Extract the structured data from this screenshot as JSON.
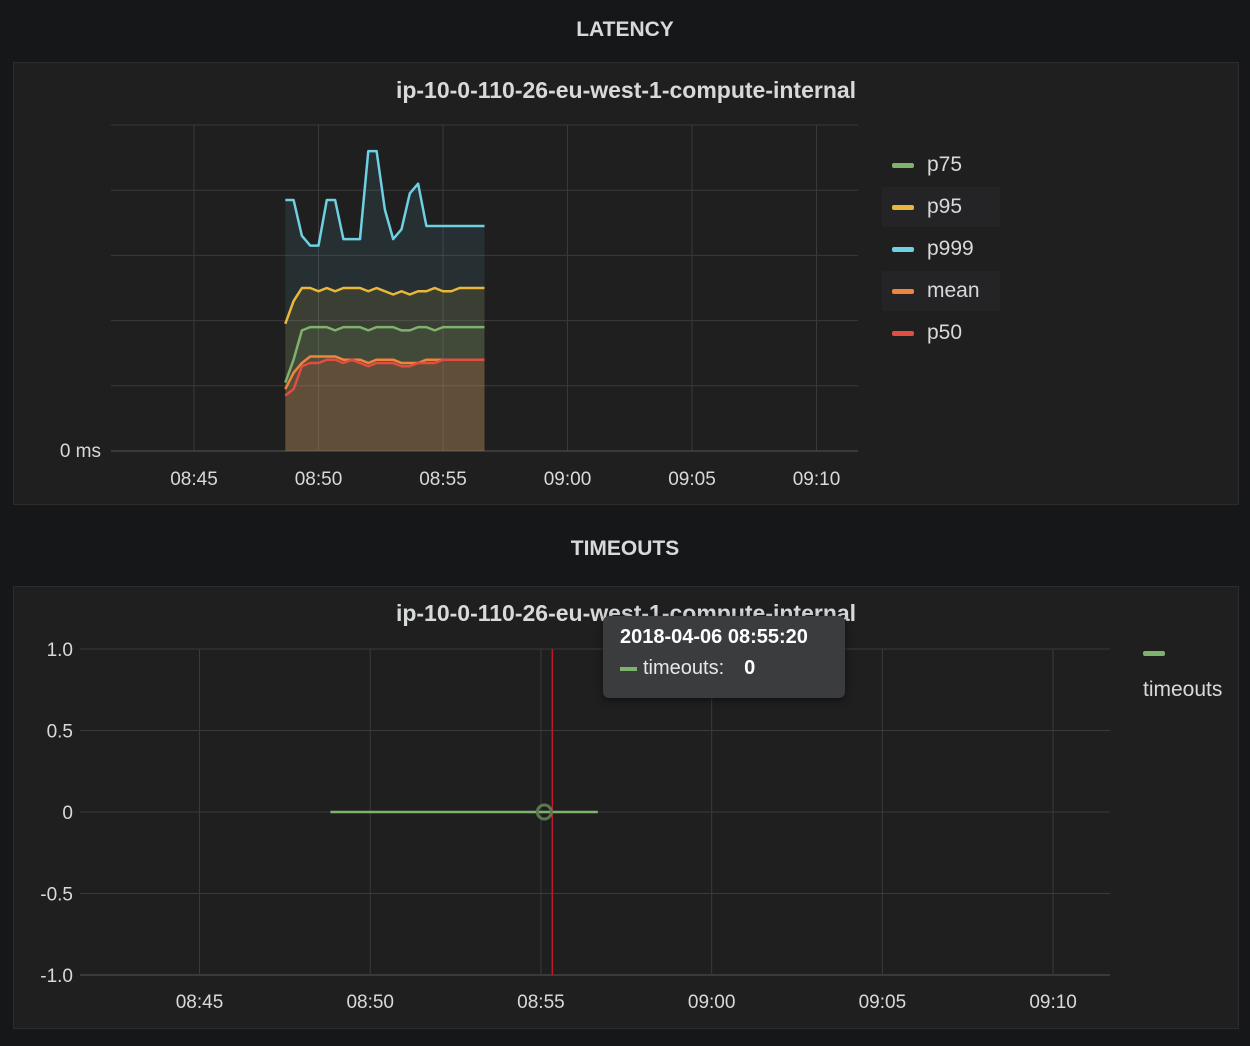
{
  "rows": [
    {
      "title": "LATENCY"
    },
    {
      "title": "TIMEOUTS"
    }
  ],
  "latency_panel": {
    "title": "ip-10-0-110-26-eu-west-1-compute-internal",
    "legend": [
      {
        "name": "p75",
        "color": "#7eb26d"
      },
      {
        "name": "p95",
        "color": "#eab839"
      },
      {
        "name": "p999",
        "color": "#6ed0e0"
      },
      {
        "name": "mean",
        "color": "#ef843c"
      },
      {
        "name": "p50",
        "color": "#e24d42"
      }
    ]
  },
  "timeouts_panel": {
    "title": "ip-10-0-110-26-eu-west-1-compute-internal",
    "legend": [
      {
        "name": "timeouts",
        "color": "#7eb26d"
      }
    ],
    "tooltip": {
      "time": "2018-04-06 08:55:20",
      "series": "timeouts:",
      "value": "0"
    }
  },
  "chart_data": [
    {
      "type": "area",
      "title": "ip-10-0-110-26-eu-west-1-compute-internal",
      "x_ticks": [
        "08:45",
        "08:50",
        "08:55",
        "09:00",
        "09:05",
        "09:10"
      ],
      "y_ticks": [
        "0 ms"
      ],
      "x_range": [
        "08:41:40",
        "09:11:40"
      ],
      "y_range": [
        0,
        100
      ],
      "grid": true,
      "legend_position": "right",
      "x": [
        "08:48:40",
        "08:49:00",
        "08:49:20",
        "08:49:40",
        "08:50:00",
        "08:50:20",
        "08:50:40",
        "08:51:00",
        "08:51:20",
        "08:51:40",
        "08:52:00",
        "08:52:20",
        "08:52:40",
        "08:53:00",
        "08:53:20",
        "08:53:40",
        "08:54:00",
        "08:54:20",
        "08:54:40",
        "08:55:00",
        "08:55:20",
        "08:55:40",
        "08:56:00",
        "08:56:20",
        "08:56:40"
      ],
      "series": [
        {
          "name": "p75",
          "color": "#7eb26d",
          "values": [
            21,
            28,
            37,
            38,
            38,
            38,
            37,
            38,
            38,
            38,
            37,
            38,
            38,
            38,
            37,
            37,
            38,
            38,
            37,
            38,
            38,
            38,
            38,
            38,
            38
          ]
        },
        {
          "name": "p95",
          "color": "#eab839",
          "values": [
            39,
            46,
            50,
            50,
            49,
            50,
            49,
            50,
            50,
            50,
            49,
            50,
            49,
            48,
            49,
            48,
            49,
            49,
            50,
            49,
            49,
            50,
            50,
            50,
            50
          ]
        },
        {
          "name": "p999",
          "color": "#6ed0e0",
          "values": [
            77,
            77,
            66,
            63,
            63,
            77,
            77,
            65,
            65,
            65,
            92,
            92,
            74,
            65,
            68,
            79,
            82,
            69,
            69,
            69,
            69,
            69,
            69,
            69,
            69
          ]
        },
        {
          "name": "mean",
          "color": "#ef843c",
          "values": [
            19,
            24,
            27,
            29,
            29,
            29,
            29,
            28,
            28,
            28,
            27,
            28,
            28,
            28,
            27,
            27,
            27,
            28,
            28,
            28,
            28,
            28,
            28,
            28,
            28
          ]
        },
        {
          "name": "p50",
          "color": "#e24d42",
          "values": [
            17,
            19,
            26,
            27,
            27,
            28,
            28,
            27,
            28,
            27,
            26,
            27,
            27,
            27,
            26,
            26,
            27,
            27,
            27,
            28,
            28,
            28,
            28,
            28,
            28
          ]
        }
      ]
    },
    {
      "type": "line",
      "title": "ip-10-0-110-26-eu-west-1-compute-internal",
      "x_ticks": [
        "08:45",
        "08:50",
        "08:55",
        "09:00",
        "09:05",
        "09:10"
      ],
      "y_ticks": [
        "1.0",
        "0.5",
        "0",
        "-0.5",
        "-1.0"
      ],
      "x_range": [
        "08:41:30",
        "09:11:40"
      ],
      "y_range": [
        -1,
        1
      ],
      "grid": true,
      "legend_position": "right",
      "series": [
        {
          "name": "timeouts",
          "color": "#7eb26d",
          "x": [
            "08:48:50",
            "08:56:40"
          ],
          "values": [
            0,
            0
          ]
        }
      ],
      "crosshair": "08:55:20",
      "highlight": {
        "x": "08:55:20",
        "y": 0
      }
    }
  ]
}
